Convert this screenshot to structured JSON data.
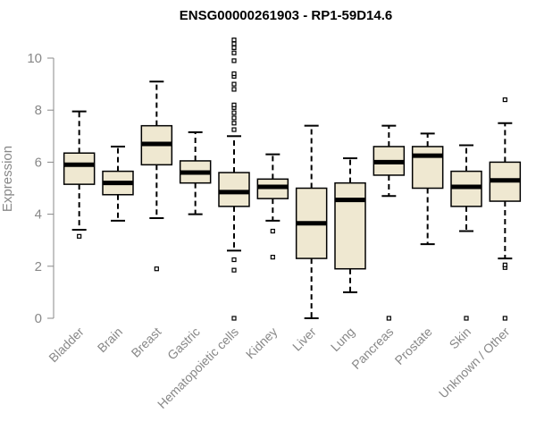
{
  "chart_data": {
    "type": "boxplot",
    "title": "ENSG00000261903 - RP1-59D14.6",
    "ylabel": "Expression",
    "xlabel": "",
    "ylim": [
      0,
      10.8
    ],
    "yticks": [
      0,
      2,
      4,
      6,
      8,
      10
    ],
    "grid": false,
    "legend": "none",
    "colors": {
      "box_fill": "#efe8d1",
      "box_stroke": "#000000",
      "median": "#000000",
      "axis": "#888888",
      "text": "#888888"
    },
    "categories": [
      "Bladder",
      "Brain",
      "Breast",
      "Gastric",
      "Hematopoietic cells",
      "Kidney",
      "Liver",
      "Lung",
      "Pancreas",
      "Prostate",
      "Skin",
      "Unknown / Other"
    ],
    "boxes": [
      {
        "category": "Bladder",
        "min": 3.4,
        "q1": 5.15,
        "median": 5.9,
        "q3": 6.35,
        "max": 7.95,
        "outliers": [
          3.15
        ]
      },
      {
        "category": "Brain",
        "min": 3.75,
        "q1": 4.75,
        "median": 5.2,
        "q3": 5.65,
        "max": 6.6,
        "outliers": []
      },
      {
        "category": "Breast",
        "min": 3.85,
        "q1": 5.9,
        "median": 6.7,
        "q3": 7.4,
        "max": 9.1,
        "outliers": [
          1.9
        ]
      },
      {
        "category": "Gastric",
        "min": 4.0,
        "q1": 5.2,
        "median": 5.6,
        "q3": 6.05,
        "max": 7.15,
        "outliers": []
      },
      {
        "category": "Hematopoietic cells",
        "min": 2.6,
        "q1": 4.3,
        "median": 4.85,
        "q3": 5.6,
        "max": 7.0,
        "outliers": [
          0.0,
          1.85,
          2.25,
          7.25,
          7.5,
          7.7,
          7.9,
          8.1,
          8.2,
          8.8,
          9.0,
          9.3,
          9.4,
          9.9,
          10.2,
          10.4,
          10.55,
          10.7
        ]
      },
      {
        "category": "Kidney",
        "min": 3.75,
        "q1": 4.6,
        "median": 5.05,
        "q3": 5.35,
        "max": 6.3,
        "outliers": [
          3.35,
          2.35
        ]
      },
      {
        "category": "Liver",
        "min": 0.0,
        "q1": 2.3,
        "median": 3.65,
        "q3": 5.0,
        "max": 7.4,
        "outliers": []
      },
      {
        "category": "Lung",
        "min": 1.0,
        "q1": 1.9,
        "median": 4.55,
        "q3": 5.2,
        "max": 6.15,
        "outliers": []
      },
      {
        "category": "Pancreas",
        "min": 4.7,
        "q1": 5.5,
        "median": 6.0,
        "q3": 6.6,
        "max": 7.4,
        "outliers": [
          0.0
        ]
      },
      {
        "category": "Prostate",
        "min": 2.85,
        "q1": 5.0,
        "median": 6.25,
        "q3": 6.6,
        "max": 7.1,
        "outliers": []
      },
      {
        "category": "Skin",
        "min": 3.35,
        "q1": 4.3,
        "median": 5.05,
        "q3": 5.65,
        "max": 6.65,
        "outliers": [
          0.0
        ]
      },
      {
        "category": "Unknown / Other",
        "min": 2.3,
        "q1": 4.5,
        "median": 5.3,
        "q3": 6.0,
        "max": 7.5,
        "outliers": [
          0.0,
          1.95,
          2.05,
          8.4
        ]
      }
    ]
  }
}
